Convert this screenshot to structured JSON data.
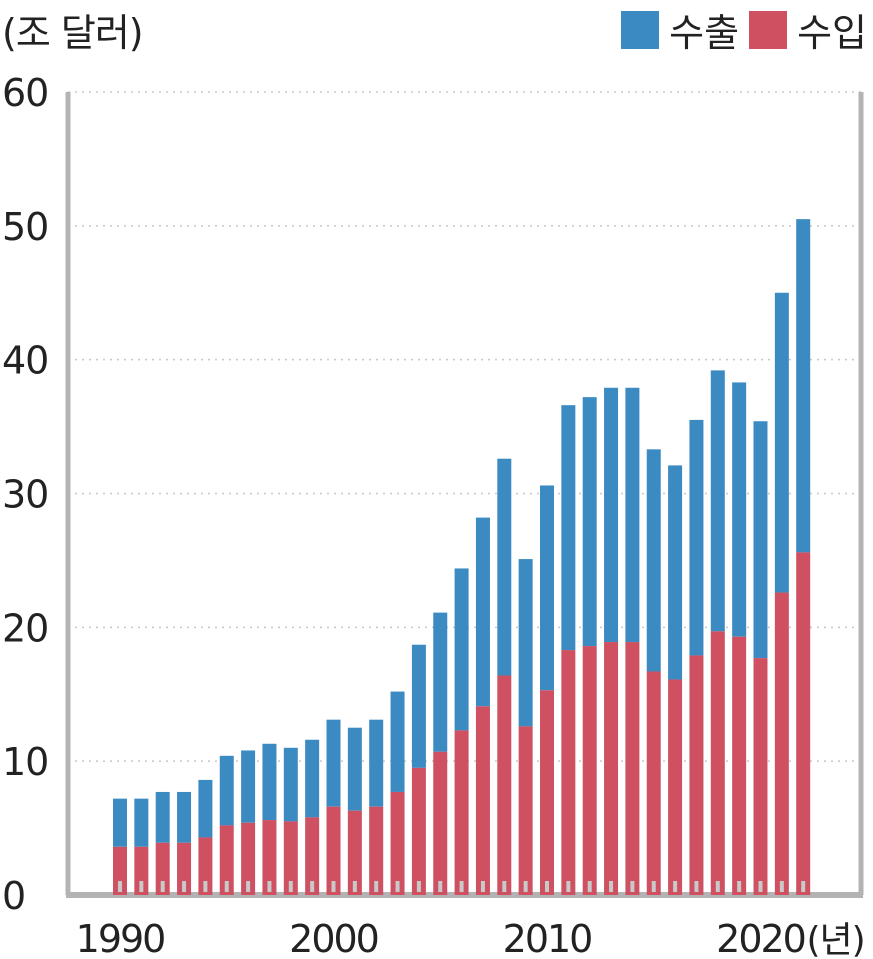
{
  "colors": {
    "export": "#3b8bc2",
    "import": "#cf5060",
    "axis": "#b3b3b3",
    "grid": "#c8c8c8",
    "text": "#222222"
  },
  "unit_label": "(조 달러)",
  "year_unit": "(년)",
  "legend": [
    {
      "label": "수출",
      "color": "#3b8bc2"
    },
    {
      "label": "수입",
      "color": "#cf5060"
    }
  ],
  "chart_data": {
    "type": "bar",
    "stacked": true,
    "categories": [
      1990,
      1991,
      1992,
      1993,
      1994,
      1995,
      1996,
      1997,
      1998,
      1999,
      2000,
      2001,
      2002,
      2003,
      2004,
      2005,
      2006,
      2007,
      2008,
      2009,
      2010,
      2011,
      2012,
      2013,
      2014,
      2015,
      2016,
      2017,
      2018,
      2019,
      2020,
      2021,
      2022
    ],
    "x_tick_labels": [
      "1990",
      "2000",
      "2010",
      "2020"
    ],
    "series": [
      {
        "name": "수입",
        "values": [
          3.6,
          3.6,
          3.9,
          3.9,
          4.3,
          5.2,
          5.4,
          5.6,
          5.5,
          5.8,
          6.6,
          6.3,
          6.6,
          7.7,
          9.5,
          10.7,
          12.3,
          14.1,
          16.4,
          12.6,
          15.3,
          18.3,
          18.6,
          18.9,
          18.9,
          16.7,
          16.1,
          17.9,
          19.7,
          19.3,
          17.7,
          22.6,
          25.6
        ]
      },
      {
        "name": "수출",
        "values": [
          3.6,
          3.6,
          3.8,
          3.8,
          4.3,
          5.2,
          5.4,
          5.7,
          5.5,
          5.8,
          6.5,
          6.2,
          6.5,
          7.5,
          9.2,
          10.4,
          12.1,
          14.1,
          16.2,
          12.5,
          15.3,
          18.3,
          18.6,
          19.0,
          19.0,
          16.6,
          16.0,
          17.6,
          19.5,
          19.0,
          17.7,
          22.4,
          24.9
        ]
      }
    ],
    "y_ticks": [
      "0",
      "10",
      "20",
      "30",
      "40",
      "50",
      "60"
    ],
    "ylim": [
      0,
      60
    ],
    "grid": true,
    "legend_position": "top-right"
  }
}
